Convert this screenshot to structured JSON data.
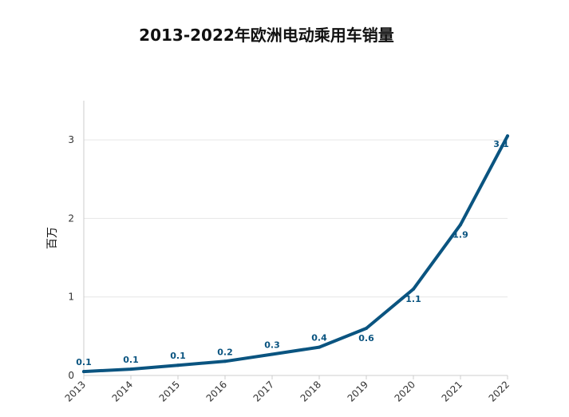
{
  "chart_data": {
    "type": "line",
    "title": "2013-2022年欧洲电动乘用车销量",
    "xlabel": "",
    "ylabel": "百万",
    "x": [
      "2013",
      "2014",
      "2015",
      "2016",
      "2017",
      "2018",
      "2019",
      "2020",
      "2021",
      "2022"
    ],
    "series": [
      {
        "values": [
          0.05,
          0.08,
          0.13,
          0.18,
          0.27,
          0.36,
          0.6,
          1.1,
          1.92,
          3.05
        ],
        "data_labels": [
          "0.1",
          "0.1",
          "0.1",
          "0.2",
          "0.3",
          "0.4",
          "0.6",
          "1.1",
          "1.9",
          "3.1"
        ],
        "color": "#0a5480"
      }
    ],
    "ylim": [
      0,
      3.5
    ],
    "yticks": [
      0,
      1,
      2,
      3
    ],
    "grid": true,
    "legend": "none",
    "colors": {
      "line": "#0a5480",
      "grid": "#e6e6e6",
      "axis": "#cccccc"
    }
  }
}
